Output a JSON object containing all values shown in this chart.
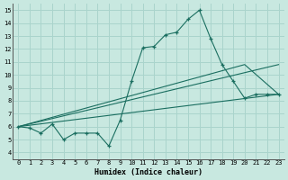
{
  "bg_color": "#c8e8e0",
  "grid_color": "#aad4cc",
  "line_color": "#1a6e60",
  "xlabel": "Humidex (Indice chaleur)",
  "xlim": [
    -0.5,
    23.5
  ],
  "ylim": [
    3.5,
    15.5
  ],
  "yticks": [
    4,
    5,
    6,
    7,
    8,
    9,
    10,
    11,
    12,
    13,
    14,
    15
  ],
  "xticks": [
    0,
    1,
    2,
    3,
    4,
    5,
    6,
    7,
    8,
    9,
    10,
    11,
    12,
    13,
    14,
    15,
    16,
    17,
    18,
    19,
    20,
    21,
    22,
    23
  ],
  "curve1_x": [
    0,
    1,
    2,
    3,
    4,
    5,
    6,
    7,
    8,
    9,
    10,
    11,
    12,
    13,
    14,
    15,
    16,
    17,
    18,
    19,
    20,
    21,
    22,
    23
  ],
  "curve1_y": [
    6.0,
    5.9,
    5.5,
    6.2,
    5.0,
    5.5,
    5.5,
    5.5,
    4.5,
    6.5,
    9.5,
    12.1,
    12.2,
    13.1,
    13.3,
    14.3,
    15.0,
    12.8,
    10.8,
    9.5,
    8.2,
    8.5,
    8.5,
    8.5
  ],
  "line1_x": [
    0,
    23
  ],
  "line1_y": [
    6.0,
    8.5
  ],
  "line2_x": [
    0,
    23
  ],
  "line2_y": [
    6.0,
    10.8
  ],
  "line3_x": [
    0,
    20,
    23
  ],
  "line3_y": [
    6.0,
    10.8,
    8.5
  ],
  "tick_fontsize": 5,
  "xlabel_fontsize": 6,
  "figwidth": 3.2,
  "figheight": 2.0,
  "dpi": 100
}
